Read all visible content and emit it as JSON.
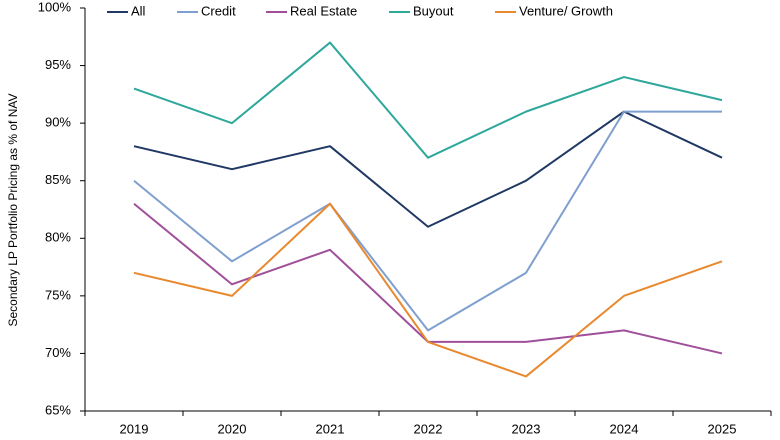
{
  "chart_data": {
    "type": "line",
    "y_label": "Secondary LP Portfolio Pricing as % of NAV",
    "categories": [
      "2019",
      "2020",
      "2021",
      "2022",
      "2023",
      "2024",
      "2025"
    ],
    "series": [
      {
        "name": "All",
        "color": "#1f3864",
        "values": [
          88,
          86,
          88,
          81,
          85,
          91,
          87
        ]
      },
      {
        "name": "Credit",
        "color": "#7f9fcf",
        "values": [
          85,
          78,
          83,
          72,
          77,
          91,
          91
        ]
      },
      {
        "name": "Real Estate",
        "color": "#a0509a",
        "values": [
          83,
          76,
          79,
          71,
          71,
          72,
          70
        ]
      },
      {
        "name": "Buyout",
        "color": "#2fa89b",
        "values": [
          93,
          90,
          97,
          87,
          91,
          94,
          92
        ]
      },
      {
        "name": "Venture/ Growth",
        "color": "#e8892f",
        "values": [
          77,
          75,
          83,
          71,
          68,
          75,
          78
        ]
      }
    ],
    "ylim": [
      65,
      100
    ],
    "yticks": [
      {
        "value": 65,
        "label": "65%"
      },
      {
        "value": 70,
        "label": "70%"
      },
      {
        "value": 75,
        "label": "75%"
      },
      {
        "value": 80,
        "label": "80%"
      },
      {
        "value": 85,
        "label": "85%"
      },
      {
        "value": 90,
        "label": "90%"
      },
      {
        "value": 95,
        "label": "95%"
      },
      {
        "value": 100,
        "label": "100%"
      }
    ],
    "legend": "top",
    "grid": false
  }
}
